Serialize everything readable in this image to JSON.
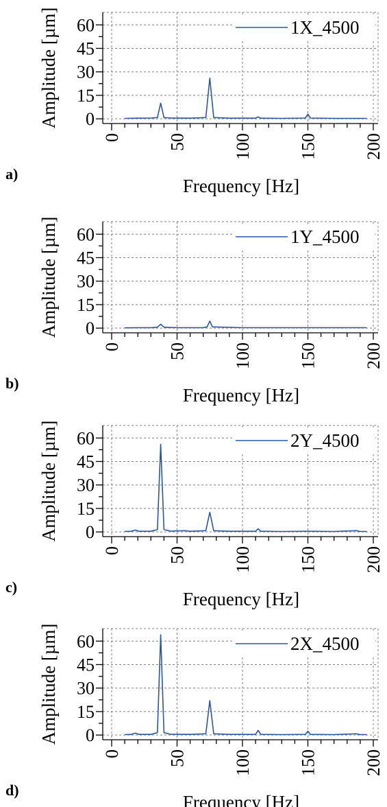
{
  "colors": {
    "series": "#2a56a6",
    "grid": "#808080",
    "axis": "#000000",
    "background": "#ffffff"
  },
  "chart_data": [
    {
      "type": "line",
      "panel_label": "a)",
      "xlabel": "Frequency [Hz]",
      "ylabel": "Amplitude [µm]",
      "xlim": [
        0,
        200
      ],
      "ylim": [
        -3,
        68
      ],
      "xticks": [
        "0",
        "50",
        "100",
        "150",
        "200"
      ],
      "yticks": [
        "0",
        "15",
        "30",
        "45",
        "60"
      ],
      "grid": true,
      "legend_position": "top-right",
      "series": [
        {
          "name": "1X_4500",
          "x": [
            10,
            20,
            30,
            35,
            37.5,
            40,
            45,
            60,
            72,
            75,
            78,
            90,
            110,
            112,
            114,
            130,
            148,
            150,
            152,
            170,
            195
          ],
          "y": [
            0.3,
            0.4,
            0.5,
            0.8,
            10,
            0.8,
            0.5,
            0.4,
            0.8,
            26,
            0.8,
            0.4,
            0.4,
            1.2,
            0.4,
            0.3,
            0.5,
            3,
            0.5,
            0.3,
            0.3
          ]
        }
      ]
    },
    {
      "type": "line",
      "panel_label": "b)",
      "xlabel": "Frequency [Hz]",
      "ylabel": "Amplitude [µm]",
      "xlim": [
        0,
        200
      ],
      "ylim": [
        -3,
        68
      ],
      "xticks": [
        "0",
        "50",
        "100",
        "150",
        "200"
      ],
      "yticks": [
        "0",
        "15",
        "30",
        "45",
        "60"
      ],
      "grid": true,
      "legend_position": "top-right",
      "series": [
        {
          "name": "1Y_4500",
          "x": [
            10,
            20,
            30,
            35,
            37.5,
            40,
            50,
            70,
            73,
            75,
            77,
            100,
            150,
            195
          ],
          "y": [
            0.2,
            0.3,
            0.3,
            0.6,
            2.5,
            0.6,
            0.3,
            0.3,
            0.8,
            4.5,
            0.8,
            0.3,
            0.3,
            0.3
          ]
        }
      ]
    },
    {
      "type": "line",
      "panel_label": "c)",
      "xlabel": "Frequency [Hz]",
      "ylabel": "Amplitude [µm]",
      "xlim": [
        0,
        200
      ],
      "ylim": [
        -3,
        68
      ],
      "xticks": [
        "0",
        "50",
        "100",
        "150",
        "200"
      ],
      "yticks": [
        "0",
        "15",
        "30",
        "45",
        "60"
      ],
      "grid": true,
      "legend_position": "top-right",
      "series": [
        {
          "name": "2Y_4500",
          "x": [
            10,
            15,
            18,
            21,
            30,
            35,
            37.5,
            40,
            45,
            56,
            60,
            72,
            75,
            78,
            90,
            110,
            112,
            114,
            130,
            150,
            170,
            187,
            190,
            195
          ],
          "y": [
            0.3,
            0.4,
            1.2,
            0.4,
            0.4,
            1.5,
            56,
            1.5,
            0.5,
            0.8,
            0.4,
            0.8,
            12.5,
            0.8,
            0.4,
            0.4,
            2,
            0.4,
            0.3,
            0.4,
            0.3,
            0.8,
            0.3,
            0.3
          ]
        }
      ]
    },
    {
      "type": "line",
      "panel_label": "d)",
      "xlabel": "Frequency [Hz]",
      "ylabel": "Amplitude [µm]",
      "xlim": [
        0,
        200
      ],
      "ylim": [
        -3,
        68
      ],
      "xticks": [
        "0",
        "50",
        "100",
        "150",
        "200"
      ],
      "yticks": [
        "0",
        "15",
        "30",
        "45",
        "60"
      ],
      "grid": true,
      "legend_position": "top-right",
      "series": [
        {
          "name": "2X_4500",
          "x": [
            10,
            15,
            18,
            21,
            30,
            35,
            37.5,
            40,
            45,
            60,
            72,
            75,
            78,
            90,
            110,
            112,
            114,
            130,
            148,
            150,
            152,
            170,
            187,
            190,
            195
          ],
          "y": [
            0.3,
            0.4,
            1.2,
            0.4,
            0.4,
            1.5,
            64,
            1.5,
            0.5,
            0.4,
            0.8,
            22,
            0.8,
            0.4,
            0.4,
            3,
            0.4,
            0.3,
            0.4,
            2.5,
            0.4,
            0.3,
            0.8,
            0.3,
            0.3
          ]
        }
      ]
    }
  ]
}
